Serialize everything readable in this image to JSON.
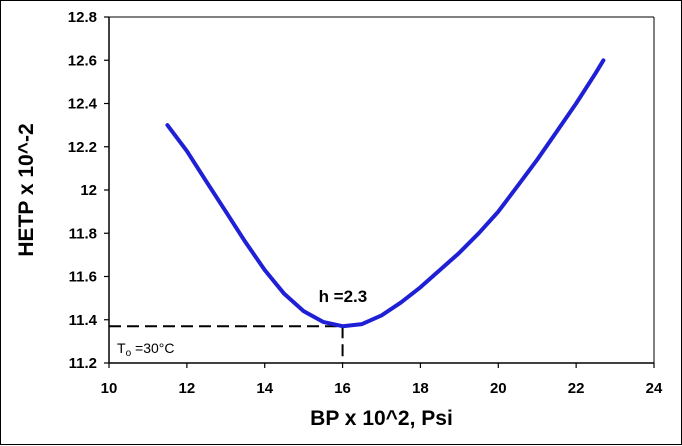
{
  "chart_data": {
    "type": "line",
    "title": "",
    "xlabel": "BP x 10^2, Psi",
    "ylabel": "HETP x 10^-2",
    "xlim": [
      10,
      24
    ],
    "ylim": [
      11.2,
      12.8
    ],
    "x_ticks": [
      "10",
      "12",
      "14",
      "16",
      "18",
      "20",
      "22",
      "24"
    ],
    "y_ticks": [
      "11.2",
      "11.4",
      "11.6",
      "11.8",
      "12",
      "12.2",
      "12.4",
      "12.6",
      "12.8"
    ],
    "grid": false,
    "legend": "none",
    "series": [
      {
        "color": "#1f1fd6",
        "x": [
          11.5,
          12.0,
          12.5,
          13.0,
          13.5,
          14.0,
          14.5,
          15.0,
          15.5,
          16.0,
          16.5,
          17.0,
          17.5,
          18.0,
          18.5,
          19.0,
          19.5,
          20.0,
          20.5,
          21.0,
          21.5,
          22.0,
          22.5,
          22.7
        ],
        "y": [
          12.3,
          12.18,
          12.04,
          11.9,
          11.76,
          11.63,
          11.52,
          11.44,
          11.39,
          11.37,
          11.38,
          11.42,
          11.48,
          11.55,
          11.63,
          11.71,
          11.8,
          11.9,
          12.02,
          12.14,
          12.27,
          12.4,
          12.54,
          12.6
        ]
      }
    ],
    "annotations": {
      "minimum_label": "h =2.3",
      "condition_label_main": "T",
      "condition_label_sub": "o",
      "condition_label_rest": " =30°C",
      "reference_point": {
        "x": 16,
        "y": 11.37
      }
    }
  }
}
